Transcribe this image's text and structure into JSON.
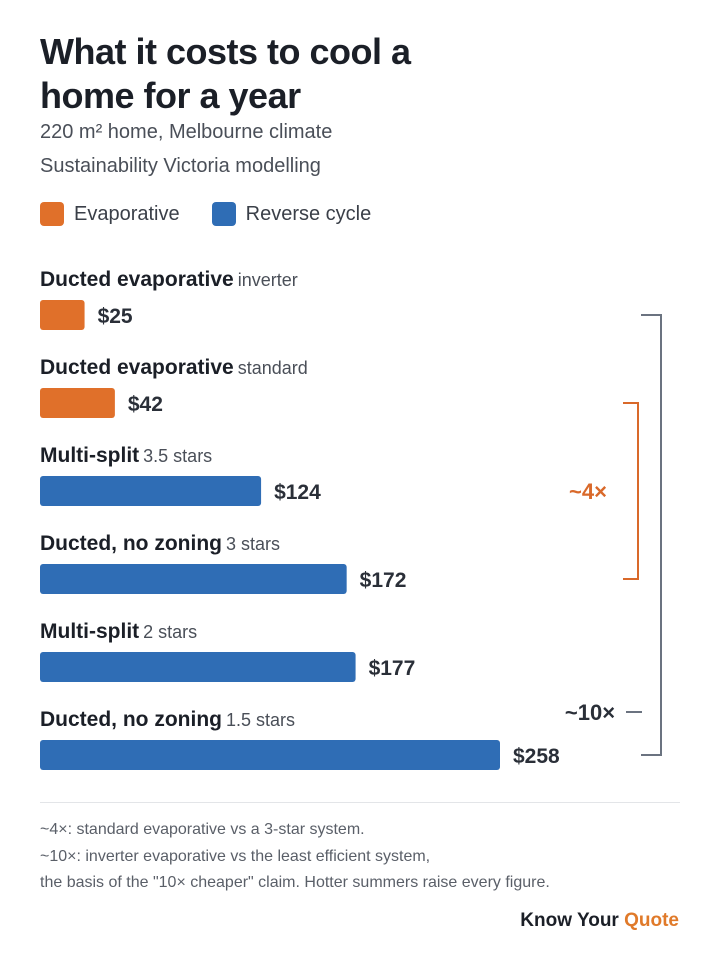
{
  "header": {
    "title": "What it costs to cool a home for a year",
    "subtitle_line1": "220 m² home, Melbourne climate",
    "subtitle_line2": "Sustainability Victoria modelling"
  },
  "legend": [
    {
      "label": "Evaporative",
      "color": "#e0702a"
    },
    {
      "label": "Reverse cycle",
      "color": "#2f6db5"
    }
  ],
  "chart_data": {
    "type": "bar",
    "orientation": "horizontal",
    "categories": [
      {
        "name": "Ducted evaporative",
        "qualifier": "inverter",
        "group": "Evaporative",
        "value": 25,
        "label": "$25"
      },
      {
        "name": "Ducted evaporative",
        "qualifier": "standard",
        "group": "Evaporative",
        "value": 42,
        "label": "$42"
      },
      {
        "name": "Multi-split",
        "qualifier": "3.5 stars",
        "group": "Reverse cycle",
        "value": 124,
        "label": "$124"
      },
      {
        "name": "Ducted, no zoning",
        "qualifier": "3 stars",
        "group": "Reverse cycle",
        "value": 172,
        "label": "$172"
      },
      {
        "name": "Multi-split",
        "qualifier": "2 stars",
        "group": "Reverse cycle",
        "value": 177,
        "label": "$177"
      },
      {
        "name": "Ducted, no zoning",
        "qualifier": "1.5 stars",
        "group": "Reverse cycle",
        "value": 258,
        "label": "$258"
      }
    ],
    "xlim": [
      0,
      258
    ],
    "grid": false,
    "annotations": [
      {
        "label": "~4×",
        "from": 1,
        "to": 3,
        "color": "#d9692a"
      },
      {
        "label": "~10×",
        "from": 0,
        "to": 5,
        "color": "#6b7380"
      }
    ]
  },
  "footnotes": [
    "~4×: standard evaporative vs a 3-star system.",
    "~10×: inverter evaporative vs the least efficient system,",
    "the basis of the \"10× cheaper\" claim. Hotter summers raise every figure."
  ],
  "brand": {
    "part1": "Know Your",
    "part2": "Quote"
  }
}
